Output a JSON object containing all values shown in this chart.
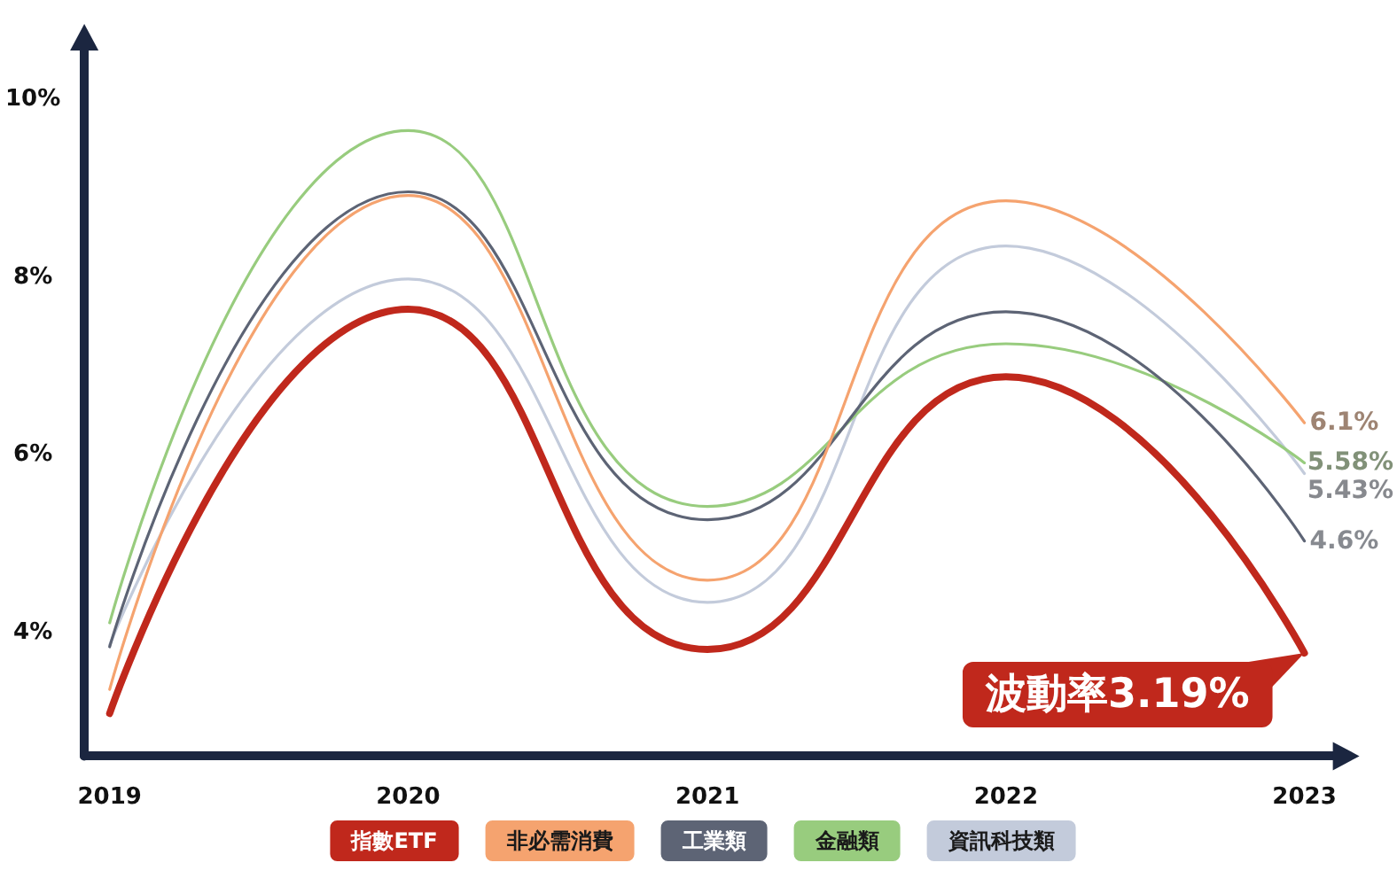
{
  "chart_data": {
    "type": "line",
    "x": [
      "2019",
      "2020",
      "2021",
      "2022",
      "2023"
    ],
    "xlim": [
      "2018-12-01",
      "2023-02-21"
    ],
    "xticks": [
      "2019",
      "2020",
      "2021",
      "2022",
      "2023"
    ],
    "ylim": [
      2.61,
      10.7
    ],
    "yticks": [
      {
        "value": 4,
        "label": "4%"
      },
      {
        "value": 6,
        "label": "6%"
      },
      {
        "value": 8,
        "label": "8%"
      },
      {
        "value": 10,
        "label": "10%"
      }
    ],
    "series": [
      {
        "name": "指數ETF",
        "color": "#c0281c",
        "values": [
          3.09,
          7.64,
          3.81,
          6.88,
          3.77
        ]
      },
      {
        "name": "非必需消費",
        "color": "#f5a36f",
        "values": [
          3.36,
          8.92,
          4.59,
          8.86,
          6.36
        ]
      },
      {
        "name": "工業類",
        "color": "#5d6475",
        "values": [
          3.84,
          8.96,
          5.27,
          7.61,
          5.03
        ]
      },
      {
        "name": "金融類",
        "color": "#98cc7e",
        "values": [
          4.11,
          9.65,
          5.42,
          7.25,
          5.91
        ]
      },
      {
        "name": "資訊科技類",
        "color": "#c3cbdb",
        "values": [
          3.86,
          7.98,
          4.34,
          8.35,
          5.79
        ]
      }
    ],
    "annotations": [
      {
        "text": "6.1%",
        "x": "2023",
        "y": 6.36
      },
      {
        "text": "5.58%",
        "x": "2023",
        "y": 5.91
      },
      {
        "text": "5.43%",
        "x": "2023",
        "y": 5.79
      },
      {
        "text": "4.6%",
        "x": "2023",
        "y": 5.03
      },
      {
        "text": "波動率3.19%",
        "x": "2023",
        "y": 3.77
      }
    ],
    "legend": "bottom",
    "marker": "none"
  }
}
